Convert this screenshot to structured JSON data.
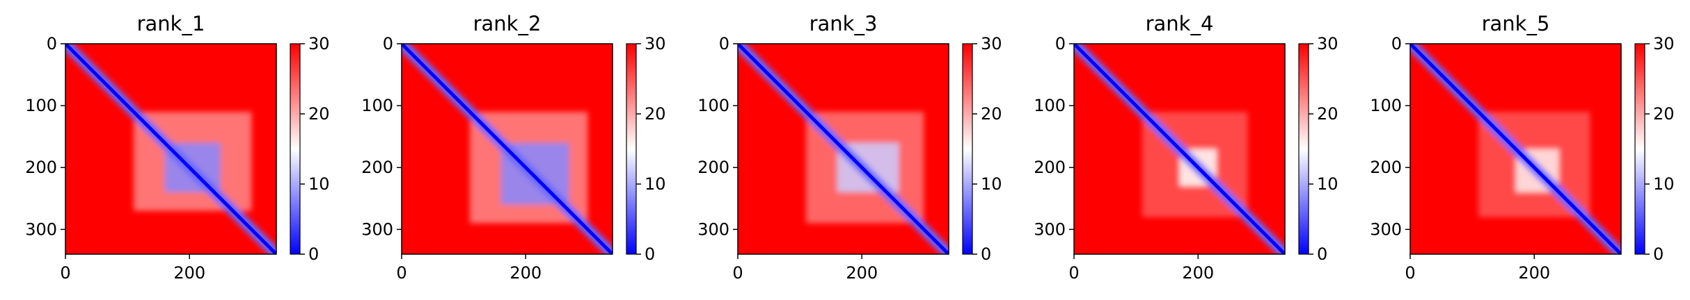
{
  "figure": {
    "panel_count": 5
  },
  "colormap": {
    "name": "bwr",
    "low": "#0000ff",
    "mid": "#ffffff",
    "high": "#ff0000"
  },
  "chart_data": [
    {
      "type": "heatmap",
      "title": "rank_1",
      "xlabel": "",
      "ylabel": "",
      "xlim": [
        0,
        340
      ],
      "ylim": [
        340,
        0
      ],
      "xticks": [
        0,
        200
      ],
      "yticks": [
        0,
        100,
        200,
        300
      ],
      "colorbar": {
        "min": 0,
        "max": 30,
        "ticks": [
          0,
          10,
          20,
          30
        ]
      },
      "grid": false,
      "description_values": {
        "diagonal_band": 0,
        "background": 30,
        "blocks": [
          {
            "x": [
              160,
              250
            ],
            "y": [
              160,
              240
            ],
            "value": 8
          },
          {
            "x": [
              110,
              300
            ],
            "y": [
              110,
              270
            ],
            "value": 22
          }
        ]
      }
    },
    {
      "type": "heatmap",
      "title": "rank_2",
      "xlabel": "",
      "ylabel": "",
      "xlim": [
        0,
        340
      ],
      "ylim": [
        340,
        0
      ],
      "xticks": [
        0,
        200
      ],
      "yticks": [
        0,
        100,
        200,
        300
      ],
      "colorbar": {
        "min": 0,
        "max": 30,
        "ticks": [
          0,
          10,
          20,
          30
        ]
      },
      "grid": false,
      "description_values": {
        "diagonal_band": 0,
        "background": 30,
        "blocks": [
          {
            "x": [
              160,
              270
            ],
            "y": [
              160,
              260
            ],
            "value": 8
          },
          {
            "x": [
              110,
              300
            ],
            "y": [
              110,
              290
            ],
            "value": 22
          }
        ]
      }
    },
    {
      "type": "heatmap",
      "title": "rank_3",
      "xlabel": "",
      "ylabel": "",
      "xlim": [
        0,
        340
      ],
      "ylim": [
        340,
        0
      ],
      "xticks": [
        0,
        200
      ],
      "yticks": [
        0,
        100,
        200,
        300
      ],
      "colorbar": {
        "min": 0,
        "max": 30,
        "ticks": [
          0,
          10,
          20,
          30
        ]
      },
      "grid": false,
      "description_values": {
        "diagonal_band": 0,
        "background": 30,
        "blocks": [
          {
            "x": [
              160,
              260
            ],
            "y": [
              160,
              240
            ],
            "value": 12
          },
          {
            "x": [
              110,
              300
            ],
            "y": [
              110,
              290
            ],
            "value": 23
          }
        ]
      }
    },
    {
      "type": "heatmap",
      "title": "rank_4",
      "xlabel": "",
      "ylabel": "",
      "xlim": [
        0,
        340
      ],
      "ylim": [
        340,
        0
      ],
      "xticks": [
        0,
        200
      ],
      "yticks": [
        0,
        100,
        200,
        300
      ],
      "colorbar": {
        "min": 0,
        "max": 30,
        "ticks": [
          0,
          10,
          20,
          30
        ]
      },
      "grid": false,
      "description_values": {
        "diagonal_band": 0,
        "background": 30,
        "blocks": [
          {
            "x": [
              170,
              230
            ],
            "y": [
              170,
              230
            ],
            "value": 15
          },
          {
            "x": [
              110,
              280
            ],
            "y": [
              110,
              280
            ],
            "value": 25
          }
        ]
      }
    },
    {
      "type": "heatmap",
      "title": "rank_5",
      "xlabel": "",
      "ylabel": "",
      "xlim": [
        0,
        340
      ],
      "ylim": [
        340,
        0
      ],
      "xticks": [
        0,
        200
      ],
      "yticks": [
        0,
        100,
        200,
        300
      ],
      "colorbar": {
        "min": 0,
        "max": 30,
        "ticks": [
          0,
          10,
          20,
          30
        ]
      },
      "grid": false,
      "description_values": {
        "diagonal_band": 0,
        "background": 30,
        "blocks": [
          {
            "x": [
              170,
              240
            ],
            "y": [
              170,
              240
            ],
            "value": 16
          },
          {
            "x": [
              110,
              290
            ],
            "y": [
              110,
              280
            ],
            "value": 25
          }
        ]
      }
    }
  ]
}
